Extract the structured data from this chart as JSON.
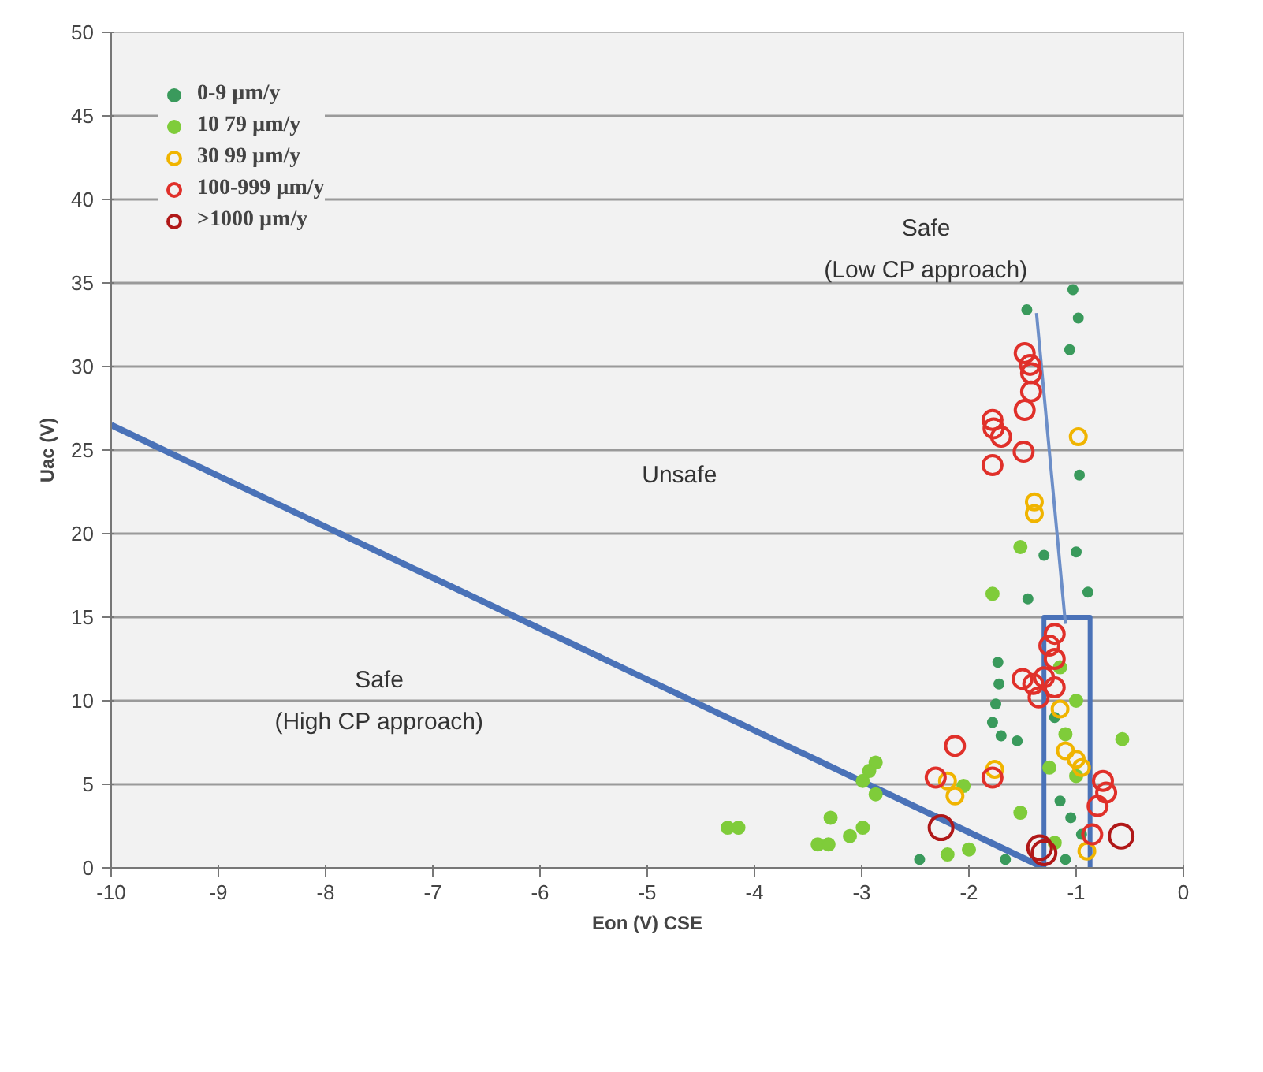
{
  "chart_data": {
    "type": "scatter",
    "xlabel": "Eon (V) CSE",
    "ylabel": "Uac (V)",
    "xlim": [
      -10,
      0
    ],
    "ylim": [
      0,
      50
    ],
    "xticks": [
      -10,
      -9,
      -8,
      -7,
      -6,
      -5,
      -4,
      -3,
      -2,
      -1,
      0
    ],
    "yticks": [
      0,
      5,
      10,
      15,
      20,
      25,
      30,
      35,
      40,
      45,
      50
    ],
    "grid": "y",
    "legend": "top left",
    "annotations": [
      "Safe",
      "(Low CP approach)",
      "Unsafe",
      "Safe",
      "(High CP approach)"
    ],
    "series": [
      {
        "type": "line",
        "color": "#4a72b8",
        "x": [
          -10,
          -1.3
        ],
        "values": [
          26.5,
          0
        ]
      },
      {
        "type": "line",
        "color": "#4a72b8",
        "x": [
          -1.3,
          -1.3,
          -0.87,
          -0.87
        ],
        "values": [
          0,
          15,
          15,
          0
        ]
      },
      {
        "type": "line",
        "color": "#6c8ec8",
        "x": [
          -1.37,
          -1.1
        ],
        "values": [
          33.2,
          14.6
        ]
      },
      {
        "name": "0-9 µm/y",
        "marker": "circle",
        "color": "#3a9a5c",
        "x": [
          -1.46,
          -1.03,
          -0.98,
          -1.06,
          -0.97,
          -1.3,
          -1.0,
          -1.45,
          -0.89,
          -2.46,
          -1.73,
          -1.72,
          -1.75,
          -1.78,
          -1.7,
          -1.55,
          -1.66,
          -1.2,
          -1.05,
          -0.95,
          -1.15,
          -1.1
        ],
        "values": [
          33.4,
          34.6,
          32.9,
          31.0,
          23.5,
          18.7,
          18.9,
          16.1,
          16.5,
          0.5,
          12.3,
          11.0,
          9.8,
          8.7,
          7.9,
          7.6,
          0.5,
          9.0,
          3.0,
          2.0,
          4.0,
          0.5
        ]
      },
      {
        "name": "10 79 µm/y",
        "marker": "circle",
        "color": "#7fcc3a",
        "x": [
          -1.52,
          -1.78,
          -4.25,
          -4.15,
          -3.41,
          -3.31,
          -3.29,
          -3.11,
          -2.99,
          -2.87,
          -2.93,
          -2.87,
          -2.99,
          -2.2,
          -2.0,
          -2.05,
          -1.52,
          -1.1,
          -1.0,
          -1.25,
          -1.2,
          -1.0,
          -0.57,
          -1.15
        ],
        "values": [
          19.2,
          16.4,
          2.4,
          2.4,
          1.4,
          1.4,
          3.0,
          1.9,
          2.4,
          6.3,
          5.8,
          4.4,
          5.2,
          0.8,
          1.1,
          4.9,
          3.3,
          8.0,
          10.0,
          6.0,
          1.5,
          5.5,
          7.7,
          12.0
        ]
      },
      {
        "name": "30 99 µm/y",
        "marker": "circle",
        "color": "#f0b400",
        "x": [
          -1.39,
          -1.39,
          -0.98,
          -2.13,
          -2.2,
          -1.76,
          -1.15,
          -1.1,
          -1.0,
          -0.95,
          -0.9
        ],
        "values": [
          21.9,
          21.2,
          25.8,
          4.3,
          5.2,
          5.9,
          9.5,
          7.0,
          6.5,
          6.0,
          1.0
        ]
      },
      {
        "name": "100-999 µm/y",
        "marker": "circle",
        "color": "#e0302a",
        "x": [
          -1.48,
          -1.43,
          -1.42,
          -1.42,
          -1.48,
          -1.78,
          -1.77,
          -1.7,
          -1.78,
          -1.49,
          -2.13,
          -2.31,
          -1.78,
          -1.5,
          -1.4,
          -1.3,
          -1.2,
          -1.35,
          -1.2,
          -1.25,
          -1.2,
          -0.75,
          -0.72,
          -0.8,
          -0.85
        ],
        "values": [
          30.8,
          30.1,
          29.6,
          28.5,
          27.4,
          26.8,
          26.3,
          25.8,
          24.1,
          24.9,
          7.3,
          5.4,
          5.4,
          11.3,
          11.0,
          11.4,
          10.8,
          10.2,
          14.0,
          13.3,
          12.5,
          5.2,
          4.5,
          3.7,
          2.0
        ]
      },
      {
        "name": ">1000 µm/y",
        "marker": "circle",
        "color": "#b01818",
        "x": [
          -2.26,
          -1.34,
          -1.3,
          -0.58
        ],
        "values": [
          2.4,
          1.2,
          0.9,
          1.9
        ]
      }
    ]
  }
}
